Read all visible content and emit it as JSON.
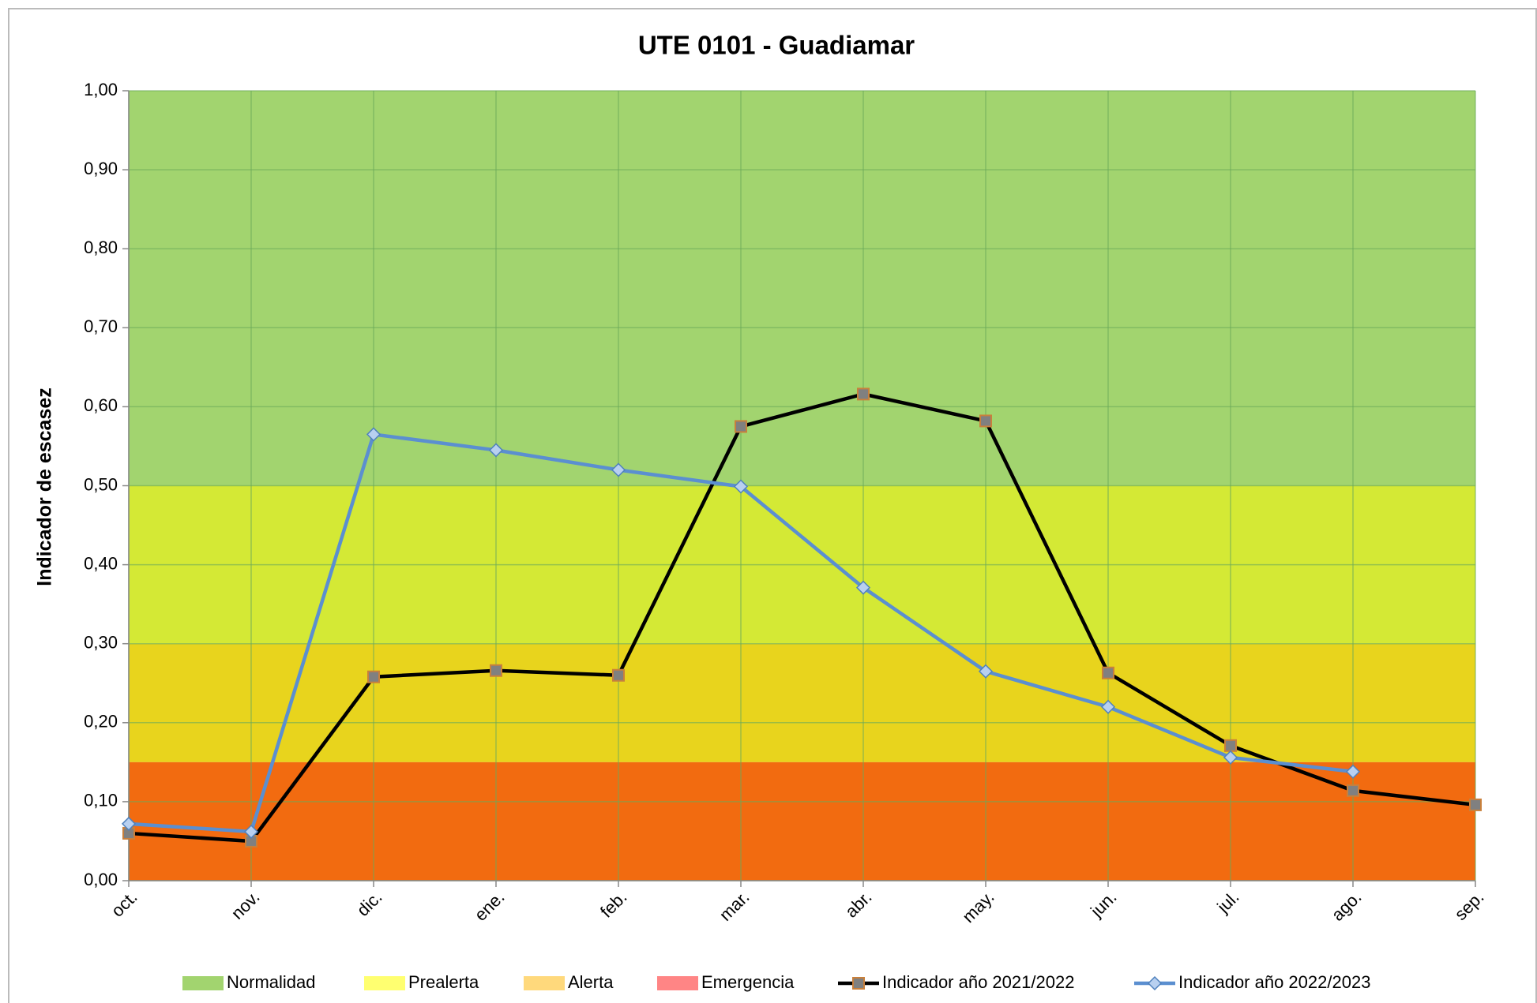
{
  "chart_data": {
    "type": "line",
    "title": "UTE 0101 - Guadiamar",
    "y_label": "Indicador de escasez",
    "categories": [
      "oct.",
      "nov.",
      "dic.",
      "ene.",
      "feb.",
      "mar.",
      "abr.",
      "may.",
      "jun.",
      "jul.",
      "ago.",
      "sep."
    ],
    "ylim": [
      0,
      1
    ],
    "yticks": [
      {
        "value": 0,
        "label": "0,00"
      },
      {
        "value": 0.1,
        "label": "0,10"
      },
      {
        "value": 0.2,
        "label": "0,20"
      },
      {
        "value": 0.3,
        "label": "0,30"
      },
      {
        "value": 0.4,
        "label": "0,40"
      },
      {
        "value": 0.5,
        "label": "0,50"
      },
      {
        "value": 0.6,
        "label": "0,60"
      },
      {
        "value": 0.7,
        "label": "0,70"
      },
      {
        "value": 0.8,
        "label": "0,80"
      },
      {
        "value": 0.9,
        "label": "0,90"
      },
      {
        "value": 1,
        "label": "1,00"
      }
    ],
    "grid": true,
    "legend": "bottom",
    "bands": [
      {
        "name": "Normalidad",
        "range": [
          0.5,
          1
        ],
        "color": "#a2d46f",
        "legend_color": "#a2d46f"
      },
      {
        "name": "Prealerta",
        "range": [
          0.3,
          0.5
        ],
        "color": "#d4e935",
        "legend_color": "#ffff70"
      },
      {
        "name": "Alerta",
        "range": [
          0.15,
          0.3
        ],
        "color": "#e8d41d",
        "legend_color": "#ffd97c"
      },
      {
        "name": "Emergencia",
        "range": [
          0,
          0.15
        ],
        "color": "#f26b10",
        "legend_color": "#ff8585"
      }
    ],
    "series": [
      {
        "name": "Indicador año 2021/2022",
        "color": "#000000",
        "marker": "square",
        "marker_fill": "#808080",
        "marker_stroke": "#c8803c",
        "values": [
          0.06,
          0.05,
          0.258,
          0.266,
          0.26,
          0.575,
          0.616,
          0.582,
          0.263,
          0.171,
          0.114,
          0.096
        ]
      },
      {
        "name": "Indicador año 2022/2023",
        "color": "#5b8fd0",
        "marker": "diamond",
        "marker_fill": "#b8d0f0",
        "marker_stroke": "#4f81bd",
        "values": [
          0.072,
          0.062,
          0.565,
          0.545,
          0.52,
          0.499,
          0.371,
          0.265,
          0.22,
          0.156,
          0.138,
          null
        ]
      }
    ]
  }
}
